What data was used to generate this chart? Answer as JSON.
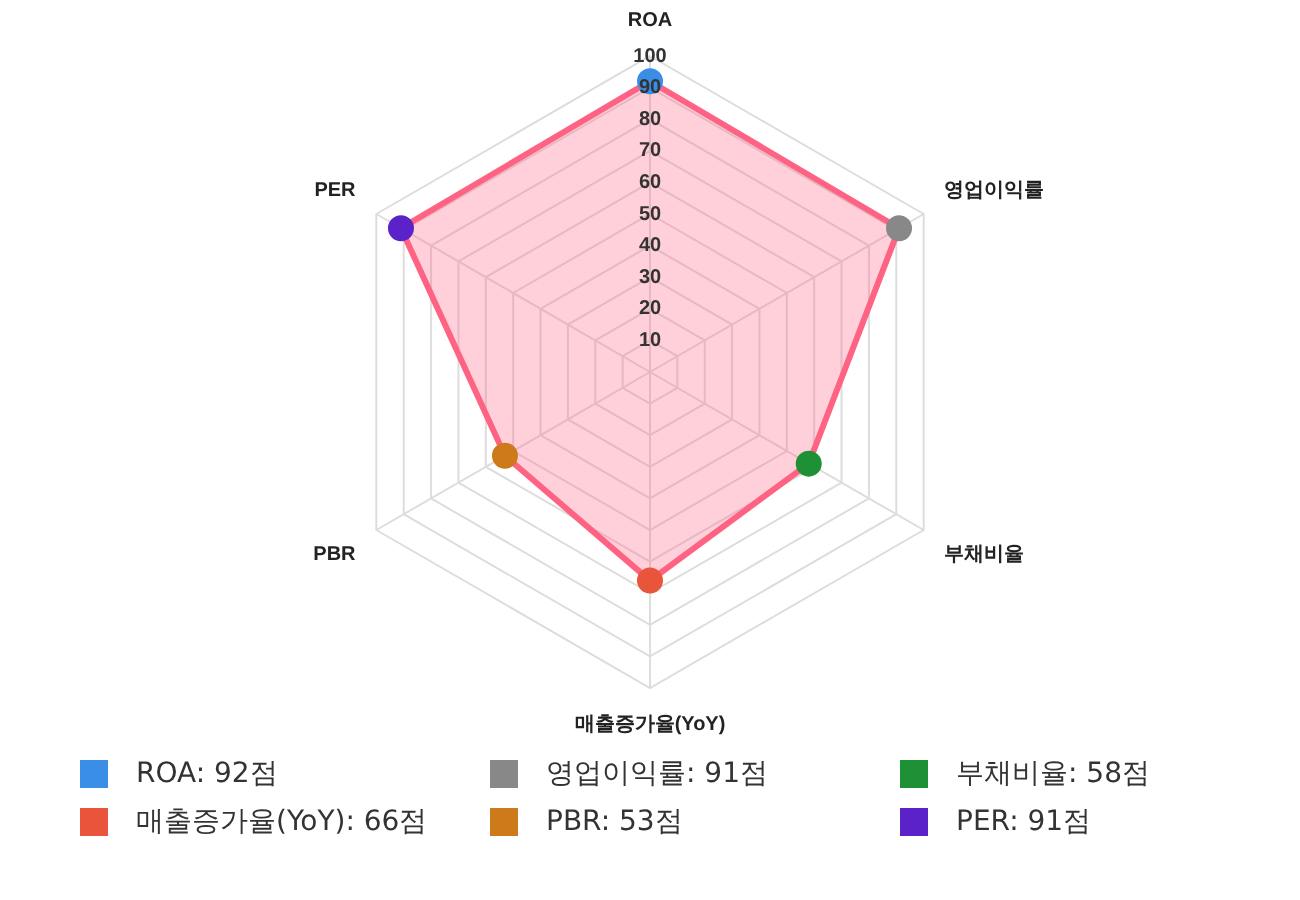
{
  "chart_data": {
    "type": "radar",
    "categories": [
      "ROA",
      "영업이익률",
      "부채비율",
      "매출증가율(YoY)",
      "PBR",
      "PER"
    ],
    "ylim": [
      0,
      100
    ],
    "yticks": [
      10,
      20,
      30,
      40,
      50,
      60,
      70,
      80,
      90,
      100
    ],
    "grid": true,
    "marker": "circle",
    "annotations": [
      "ROA: 92점",
      "영업이익률: 91점",
      "부채비율: 58점",
      "매출증가율(YoY): 66점",
      "PBR: 53점",
      "PER: 91점"
    ],
    "series": [
      {
        "color": "#ff6384",
        "colors": [
          "#3a8ee6",
          "#888888",
          "#1e9136",
          "#e8553a",
          "#cc7a1a",
          "#5a22c8"
        ],
        "values": [
          92,
          91,
          58,
          66,
          53,
          91
        ]
      }
    ]
  }
}
